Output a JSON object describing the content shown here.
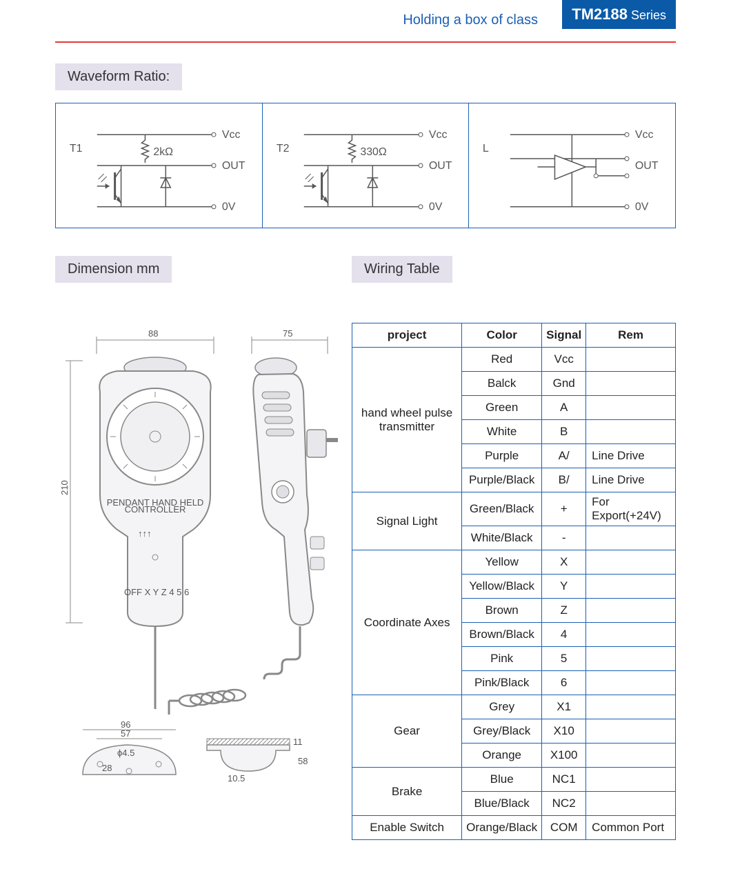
{
  "header": {
    "subtitle": "Holding a box of class",
    "series_bold": "TM2188",
    "series_light": " Series",
    "accent_color": "#0a5aa8",
    "rule_color": "#e53935",
    "subtitle_color": "#1a5fb4"
  },
  "section_labels": {
    "waveform": "Waveform Ratio:",
    "dimension": "Dimension mm",
    "wiring": "Wiring Table",
    "label_bg": "#e4e0ec"
  },
  "waveform": {
    "border_color": "#1a5fb4",
    "text_color": "#555555",
    "panels": [
      {
        "name": "T1",
        "resistor": "2kΩ",
        "vcc": "Vcc",
        "out": "OUT",
        "zero": "0V"
      },
      {
        "name": "T2",
        "resistor": "330Ω",
        "vcc": "Vcc",
        "out": "OUT",
        "zero": "0V"
      },
      {
        "name": "L",
        "resistor": "",
        "vcc": "Vcc",
        "out": "OUT",
        "zero": "0V"
      }
    ]
  },
  "dimension": {
    "values": {
      "width_front": "88",
      "width_side": "75",
      "height": "210",
      "base_outer": "96",
      "base_inner": "57",
      "base_hole": "ϕ4.5",
      "base_h": "28",
      "clip_a": "10.5",
      "clip_h": "58",
      "clip_top": "11"
    },
    "stroke": "#888888",
    "fill": "#e8e8ec"
  },
  "wiring_table": {
    "border_color": "#1a5fb4",
    "columns": [
      "project",
      "Color",
      "Signal",
      "Rem"
    ],
    "rows": [
      {
        "group": "hand wheel pulse transmitter",
        "span": 6,
        "color": "Red",
        "signal": "Vcc",
        "rem": ""
      },
      {
        "group": "",
        "span": 0,
        "color": "Balck",
        "signal": "Gnd",
        "rem": ""
      },
      {
        "group": "",
        "span": 0,
        "color": "Green",
        "signal": "A",
        "rem": ""
      },
      {
        "group": "",
        "span": 0,
        "color": "White",
        "signal": "B",
        "rem": ""
      },
      {
        "group": "",
        "span": 0,
        "color": "Purple",
        "signal": "A/",
        "rem": "Line Drive"
      },
      {
        "group": "",
        "span": 0,
        "color": "Purple/Black",
        "signal": "B/",
        "rem": "Line Drive"
      },
      {
        "group": "Signal Light",
        "span": 2,
        "color": "Green/Black",
        "signal": "+",
        "rem": "For Export(+24V)"
      },
      {
        "group": "",
        "span": 0,
        "color": "White/Black",
        "signal": "-",
        "rem": ""
      },
      {
        "group": "Coordinate Axes",
        "span": 6,
        "color": "Yellow",
        "signal": "X",
        "rem": ""
      },
      {
        "group": "",
        "span": 0,
        "color": "Yellow/Black",
        "signal": "Y",
        "rem": ""
      },
      {
        "group": "",
        "span": 0,
        "color": "Brown",
        "signal": "Z",
        "rem": ""
      },
      {
        "group": "",
        "span": 0,
        "color": "Brown/Black",
        "signal": "4",
        "rem": ""
      },
      {
        "group": "",
        "span": 0,
        "color": "Pink",
        "signal": "5",
        "rem": ""
      },
      {
        "group": "",
        "span": 0,
        "color": "Pink/Black",
        "signal": "6",
        "rem": ""
      },
      {
        "group": "Gear",
        "span": 3,
        "color": "Grey",
        "signal": "X1",
        "rem": ""
      },
      {
        "group": "",
        "span": 0,
        "color": "Grey/Black",
        "signal": "X10",
        "rem": ""
      },
      {
        "group": "",
        "span": 0,
        "color": "Orange",
        "signal": "X100",
        "rem": ""
      },
      {
        "group": "Brake",
        "span": 2,
        "color": "Blue",
        "signal": "NC1",
        "rem": ""
      },
      {
        "group": "",
        "span": 0,
        "color": "Blue/Black",
        "signal": "NC2",
        "rem": ""
      },
      {
        "group": "Enable Switch",
        "span": 1,
        "color": "Orange/Black",
        "signal": "COM",
        "rem": "Common Port"
      }
    ]
  }
}
